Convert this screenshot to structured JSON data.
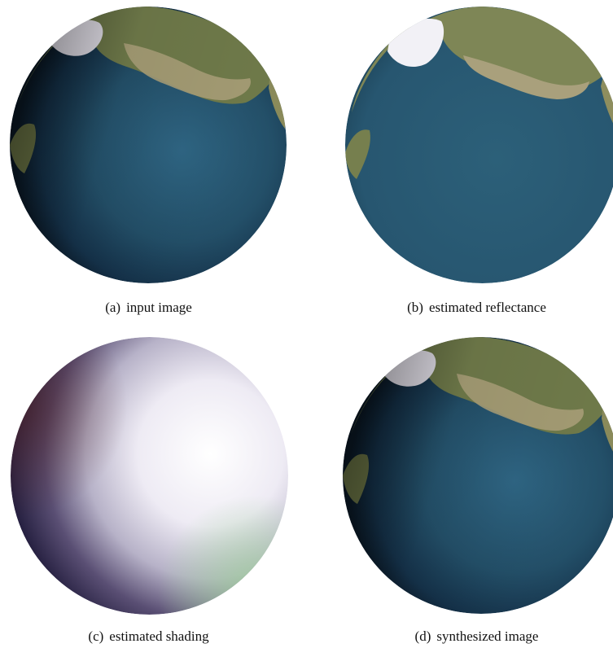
{
  "figure": {
    "panels": [
      {
        "id": "a",
        "label": "(a)",
        "caption": "input image",
        "image": "earth-globe-rendered"
      },
      {
        "id": "b",
        "label": "(b)",
        "caption": "estimated reflectance",
        "image": "earth-globe-albedo"
      },
      {
        "id": "c",
        "label": "(c)",
        "caption": "estimated shading",
        "image": "white-shaded-sphere"
      },
      {
        "id": "d",
        "label": "(d)",
        "caption": "synthesized image",
        "image": "earth-globe-rendered"
      }
    ]
  },
  "colors": {
    "ocean": "#2a5a73",
    "ocean_dark": "#0f2233",
    "land": "#8a8a5a",
    "ice": "#e8e6ee",
    "shading_light": "#f2f0f7",
    "shading_dark": "#2a2030"
  }
}
